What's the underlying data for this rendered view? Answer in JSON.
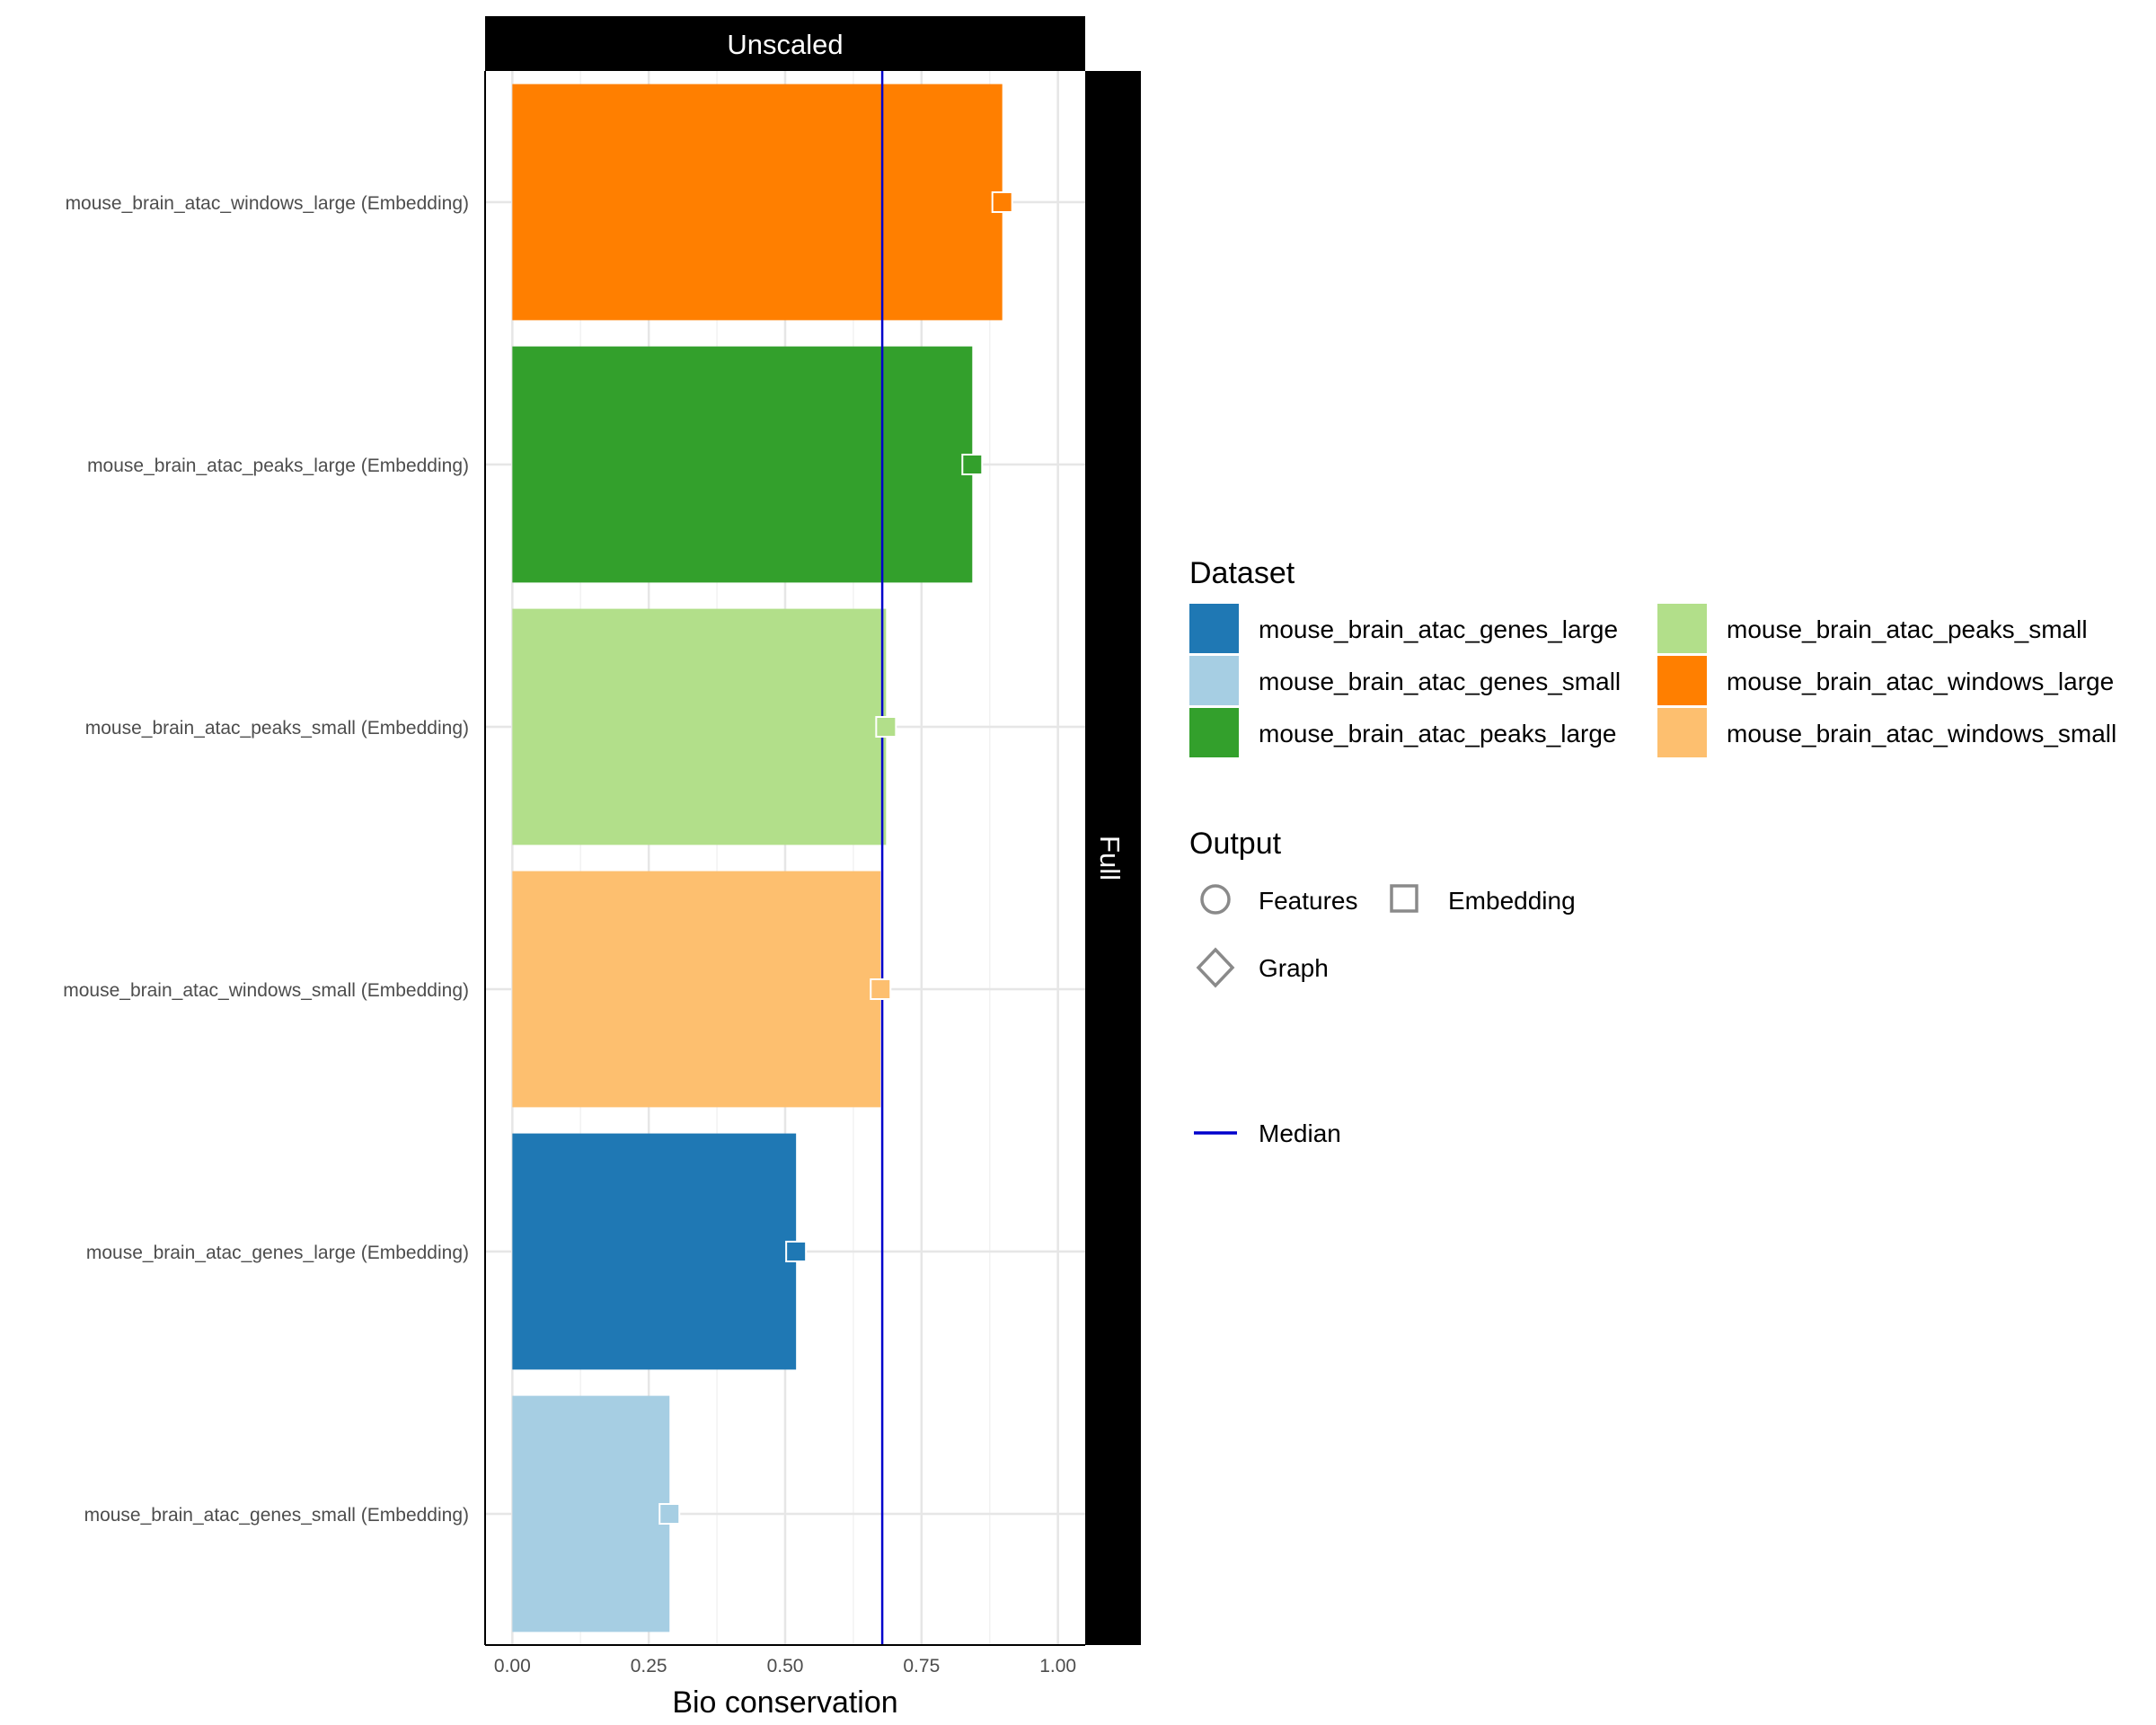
{
  "chart_data": {
    "type": "bar",
    "orientation": "horizontal",
    "facet_top": "Unscaled",
    "facet_right": "Full",
    "xlabel": "Bio conservation",
    "xlim": [
      -0.05,
      1.05
    ],
    "xticks": [
      0,
      0.25,
      0.5,
      0.75,
      1.0
    ],
    "xtick_labels": [
      "0.00",
      "0.25",
      "0.50",
      "0.75",
      "1.00"
    ],
    "median": 0.678,
    "grid": true,
    "categories": [
      "mouse_brain_atac_windows_large (Embedding)",
      "mouse_brain_atac_peaks_large (Embedding)",
      "mouse_brain_atac_peaks_small (Embedding)",
      "mouse_brain_atac_windows_small (Embedding)",
      "mouse_brain_atac_genes_large (Embedding)",
      "mouse_brain_atac_genes_small (Embedding)"
    ],
    "values": [
      0.898,
      0.843,
      0.685,
      0.675,
      0.52,
      0.288
    ],
    "colors": [
      "#FF7F00",
      "#33A02C",
      "#B2DF8A",
      "#FDBF6F",
      "#1F78B4",
      "#A6CEE3"
    ],
    "point_shape": "square",
    "legend": {
      "position": "right",
      "dataset_title": "Dataset",
      "datasets": [
        {
          "name": "mouse_brain_atac_genes_large",
          "color": "#1F78B4"
        },
        {
          "name": "mouse_brain_atac_genes_small",
          "color": "#A6CEE3"
        },
        {
          "name": "mouse_brain_atac_peaks_large",
          "color": "#33A02C"
        },
        {
          "name": "mouse_brain_atac_peaks_small",
          "color": "#B2DF8A"
        },
        {
          "name": "mouse_brain_atac_windows_large",
          "color": "#FF7F00"
        },
        {
          "name": "mouse_brain_atac_windows_small",
          "color": "#FDBF6F"
        }
      ],
      "output_title": "Output",
      "outputs": [
        {
          "name": "Features",
          "shape": "circle"
        },
        {
          "name": "Embedding",
          "shape": "square"
        },
        {
          "name": "Graph",
          "shape": "diamond"
        }
      ],
      "median_label": "Median",
      "median_color": "#0000CC"
    }
  }
}
